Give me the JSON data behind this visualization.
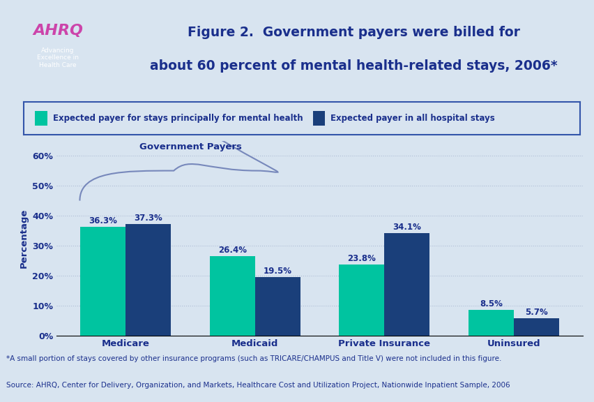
{
  "title_line1": "Figure 2.  Government payers were billed for",
  "title_line2": "about 60 percent of mental health-related stays, 2006*",
  "categories": [
    "Medicare",
    "Medicaid",
    "Private Insurance",
    "Uninsured"
  ],
  "mental_health_values": [
    36.3,
    26.4,
    23.8,
    8.5
  ],
  "all_hospital_values": [
    37.3,
    19.5,
    34.1,
    5.7
  ],
  "mental_health_color": "#00C4A0",
  "all_hospital_color": "#1A3F7A",
  "bar_width": 0.35,
  "ylim": [
    0,
    65
  ],
  "yticks": [
    0,
    10,
    20,
    30,
    40,
    50,
    60
  ],
  "ylabel": "Percentage",
  "legend_label1": "Expected payer for stays principally for mental health",
  "legend_label2": "Expected payer in all hospital stays",
  "gov_payers_label": "Government Payers",
  "footnote_line1": "*A small portion of stays covered by other insurance programs (such as TRICARE/CHAMPUS and Title V) were not included in this figure.",
  "footnote_line2": "Source: AHRQ, Center for Delivery, Organization, and Markets, Healthcare Cost and Utilization Project, Nationwide Inpatient Sample, 2006",
  "background_color": "#D8E4F0",
  "plot_bg_color": "#D8E4F0",
  "title_color": "#1A2F8C",
  "label_color": "#1A2F8C",
  "axis_label_color": "#1A2F8C",
  "tick_label_color": "#1A2F8C",
  "gov_payer_color": "#7788BB",
  "footnote_color": "#1A2F8C",
  "legend_border_color": "#3355AA",
  "separator_color": "#1A2F8C",
  "logo_bg_color": "#1A8BC4"
}
